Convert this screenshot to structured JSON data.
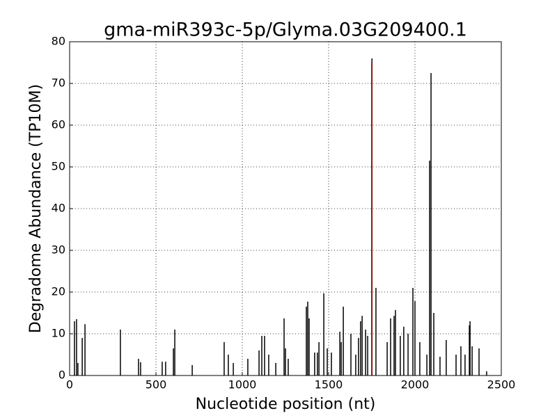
{
  "chart_data": {
    "type": "stem",
    "title": "gma-miR393c-5p/Glyma.03G209400.1",
    "x_label": "Nucleotide position (nt)",
    "y_label": "Degradome Abundance (TP10M)",
    "xlim": [
      0,
      2500
    ],
    "xticks": [
      0,
      500,
      1000,
      1500,
      2000,
      2500
    ],
    "ylim": [
      0,
      80
    ],
    "yticks": [
      0,
      10,
      20,
      30,
      40,
      50,
      60,
      70,
      80
    ],
    "grid": true,
    "series": [
      {
        "color": "#000000",
        "x": [
          28,
          40,
          48,
          73,
          89,
          294,
          399,
          411,
          536,
          556,
          601,
          609,
          710,
          895,
          919,
          948,
          1032,
          1097,
          1113,
          1129,
          1153,
          1194,
          1242,
          1250,
          1266,
          1371,
          1379,
          1387,
          1419,
          1435,
          1444,
          1472,
          1492,
          1516,
          1565,
          1573,
          1585,
          1629,
          1657,
          1673,
          1685,
          1694,
          1714,
          1726,
          1751,
          1774,
          1839,
          1859,
          1879,
          1887,
          1915,
          1935,
          1960,
          1988,
          2000,
          2028,
          2069,
          2085,
          2093,
          2109,
          2145,
          2181,
          2238,
          2266,
          2290,
          2315,
          2319,
          2331,
          2371,
          2415
        ],
        "values": [
          13,
          13.5,
          3,
          9,
          12.3,
          11,
          4,
          3.2,
          3.3,
          3.3,
          6.5,
          11,
          2.5,
          8,
          5,
          3,
          4,
          6,
          9.5,
          9.5,
          5,
          3,
          13.7,
          6.5,
          4,
          16.5,
          17.7,
          13.7,
          5.5,
          5.5,
          8,
          19.7,
          6.5,
          5.5,
          10.5,
          8,
          16.5,
          10,
          5,
          9,
          13,
          14.3,
          11,
          9.5,
          76,
          21,
          8,
          13.7,
          14.3,
          15.7,
          9.5,
          11.7,
          10,
          21,
          17.8,
          8,
          5,
          51.5,
          72.5,
          15,
          4.5,
          8.5,
          5,
          7,
          5,
          12,
          13,
          7,
          6.5,
          1
        ]
      },
      {
        "color": "#ff0000",
        "x": [
          1749
        ],
        "values": [
          75
        ]
      }
    ]
  }
}
